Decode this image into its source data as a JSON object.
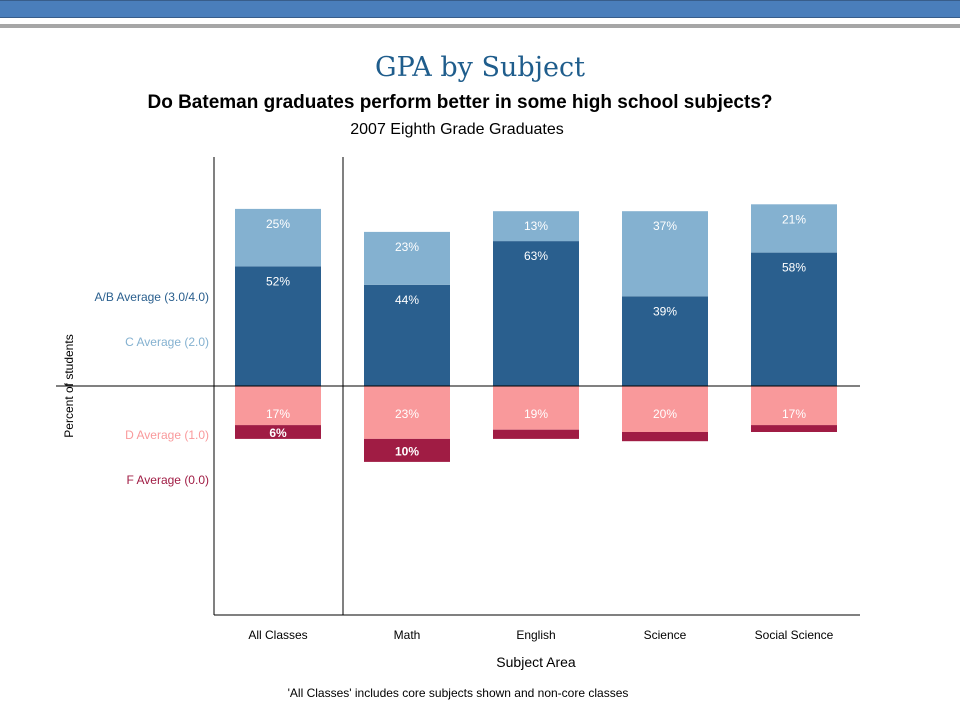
{
  "slide": {
    "title": "GPA by Subject",
    "footnote": "'All Classes' includes core subjects shown and non-core classes"
  },
  "colors": {
    "ab": "#2a5f8e",
    "c": "#84b1d0",
    "d": "#f9999b",
    "f": "#a01c44",
    "top_bar": "#4a7ebb"
  },
  "chart_data": {
    "type": "bar",
    "title": "Do Bateman graduates perform better in some high school subjects?",
    "subtitle": "2007 Eighth Grade Graduates",
    "xlabel": "Subject Area",
    "ylabel": "Percent of students",
    "categories": [
      "All Classes",
      "Math",
      "English",
      "Science",
      "Social Science"
    ],
    "series": [
      {
        "name": "A/B Average (3.0/4.0)",
        "key": "ab",
        "direction": "up",
        "values": [
          52,
          44,
          63,
          39,
          58
        ],
        "labels": [
          "52%",
          "44%",
          "63%",
          "39%",
          "58%"
        ]
      },
      {
        "name": "C Average (2.0)",
        "key": "c",
        "direction": "up",
        "values": [
          25,
          23,
          13,
          37,
          21
        ],
        "labels": [
          "25%",
          "23%",
          "13%",
          "37%",
          "21%"
        ]
      },
      {
        "name": "D Average (1.0)",
        "key": "d",
        "direction": "down",
        "values": [
          17,
          23,
          19,
          20,
          17
        ],
        "labels": [
          "17%",
          "23%",
          "19%",
          "20%",
          "17%"
        ]
      },
      {
        "name": "F Average (0.0)",
        "key": "f",
        "direction": "down",
        "values": [
          6,
          10,
          4,
          4,
          3
        ],
        "labels": [
          "6%",
          "10%",
          "",
          "",
          ""
        ]
      }
    ],
    "ylim": [
      -100,
      100
    ],
    "grid": false,
    "legend_position": "left"
  }
}
